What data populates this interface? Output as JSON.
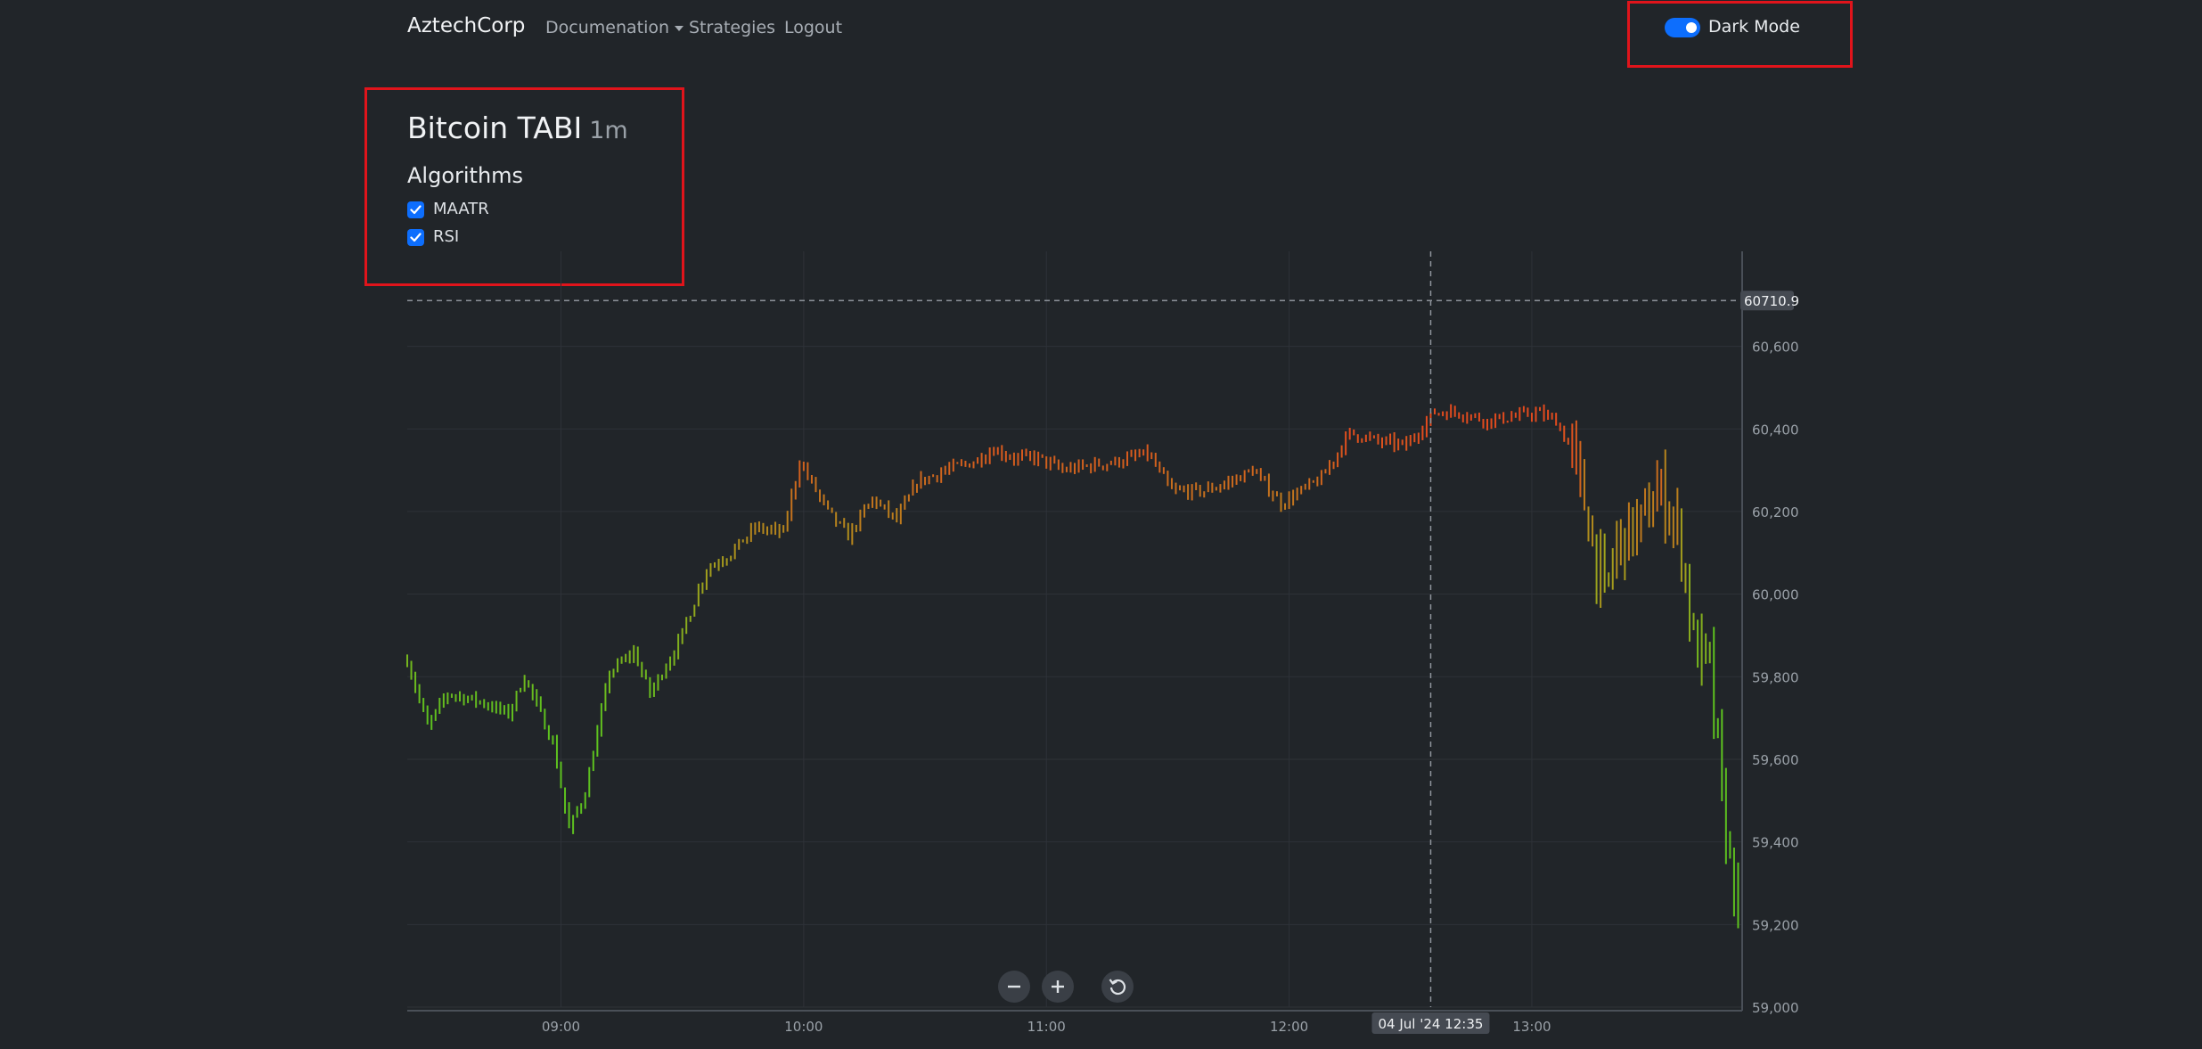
{
  "nav": {
    "brand": "AztechCorp",
    "documentation_label": "Documenation",
    "strategies_label": "Strategies",
    "logout_label": "Logout",
    "dark_mode_label": "Dark Mode",
    "dark_mode_on": true
  },
  "page": {
    "title": "Bitcoin TABI",
    "timeframe": "1m",
    "algorithms_heading": "Algorithms",
    "algorithms": [
      {
        "label": "MAATR",
        "checked": true
      },
      {
        "label": "RSI",
        "checked": true
      }
    ]
  },
  "crosshair": {
    "price_label": "60710.9",
    "date_label": "04 Jul '24",
    "time_label": "12:35"
  },
  "chart_data": {
    "type": "bar",
    "title": "",
    "xlabel": "",
    "ylabel": "",
    "ylim": [
      59000,
      60830
    ],
    "y_ticks": [
      59000,
      59200,
      59400,
      59600,
      59800,
      60000,
      60200,
      60400,
      60600
    ],
    "x_ticks": [
      "09:00",
      "10:00",
      "11:00",
      "12:00",
      "13:00"
    ],
    "x_range": [
      "08:22",
      "13:52"
    ],
    "grid": true,
    "color_scale": {
      "low": "#5dc11f",
      "mid": "#a0a11d",
      "high": "#e34b1e"
    },
    "close_path": [
      [
        "08:22",
        59840
      ],
      [
        "08:27",
        59680
      ],
      [
        "08:32",
        59760
      ],
      [
        "08:40",
        59740
      ],
      [
        "08:47",
        59710
      ],
      [
        "08:51",
        59800
      ],
      [
        "08:58",
        59640
      ],
      [
        "09:02",
        59430
      ],
      [
        "09:06",
        59520
      ],
      [
        "09:12",
        59810
      ],
      [
        "09:18",
        59860
      ],
      [
        "09:22",
        59760
      ],
      [
        "09:29",
        59880
      ],
      [
        "09:36",
        60060
      ],
      [
        "09:42",
        60100
      ],
      [
        "09:48",
        60160
      ],
      [
        "09:55",
        60150
      ],
      [
        "09:59",
        60320
      ],
      [
        "10:06",
        60200
      ],
      [
        "10:11",
        60140
      ],
      [
        "10:17",
        60230
      ],
      [
        "10:23",
        60180
      ],
      [
        "10:28",
        60270
      ],
      [
        "10:35",
        60300
      ],
      [
        "10:42",
        60320
      ],
      [
        "10:47",
        60350
      ],
      [
        "10:52",
        60330
      ],
      [
        "10:58",
        60330
      ],
      [
        "11:04",
        60300
      ],
      [
        "11:10",
        60310
      ],
      [
        "11:17",
        60320
      ],
      [
        "11:25",
        60340
      ],
      [
        "11:31",
        60250
      ],
      [
        "11:39",
        60250
      ],
      [
        "11:45",
        60270
      ],
      [
        "11:51",
        60300
      ],
      [
        "11:58",
        60220
      ],
      [
        "12:03",
        60250
      ],
      [
        "12:08",
        60280
      ],
      [
        "12:15",
        60390
      ],
      [
        "12:22",
        60370
      ],
      [
        "12:29",
        60360
      ],
      [
        "12:36",
        60440
      ],
      [
        "12:42",
        60440
      ],
      [
        "12:49",
        60420
      ],
      [
        "12:56",
        60430
      ],
      [
        "13:01",
        60440
      ],
      [
        "13:06",
        60420
      ],
      [
        "13:10",
        60340
      ],
      [
        "13:14",
        60180
      ],
      [
        "13:18",
        59990
      ],
      [
        "13:21",
        60120
      ],
      [
        "13:24",
        60150
      ],
      [
        "13:28",
        60180
      ],
      [
        "13:31",
        60250
      ],
      [
        "13:34",
        60210
      ],
      [
        "13:37",
        60120
      ],
      [
        "13:40",
        59880
      ],
      [
        "13:44",
        59820
      ],
      [
        "13:47",
        59500
      ],
      [
        "13:49",
        59350
      ],
      [
        "13:51",
        59250
      ],
      [
        "13:52",
        59240
      ]
    ]
  }
}
